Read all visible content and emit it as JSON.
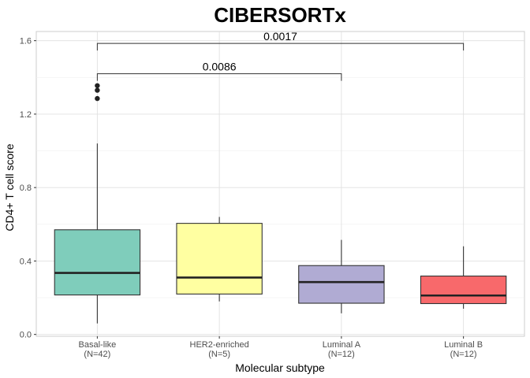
{
  "chart_data": {
    "type": "box",
    "title": "CIBERSORTx",
    "xlabel": "Molecular subtype",
    "ylabel": "CD4+ T cell score",
    "ylim": [
      -0.01,
      1.65
    ],
    "yticks": [
      "0.0",
      "0.4",
      "0.8",
      "1.2",
      "1.6"
    ],
    "grid": true,
    "categories": [
      {
        "name": "Basal-like",
        "n": "(N=42)",
        "color": "#7fcdbb",
        "min": 0.06,
        "q1": 0.215,
        "median": 0.335,
        "q3": 0.57,
        "max": 1.04,
        "outliers": [
          1.285,
          1.33,
          1.355
        ]
      },
      {
        "name": "HER2-enriched",
        "n": "(N=5)",
        "color": "#ffffa1",
        "min": 0.18,
        "q1": 0.22,
        "median": 0.31,
        "q3": 0.605,
        "max": 0.64,
        "outliers": []
      },
      {
        "name": "Luminal A",
        "n": "(N=12)",
        "color": "#b0abd3",
        "min": 0.115,
        "q1": 0.17,
        "median": 0.285,
        "q3": 0.375,
        "max": 0.515,
        "outliers": []
      },
      {
        "name": "Luminal B",
        "n": "(N=12)",
        "color": "#f8696b",
        "min": 0.14,
        "q1": 0.168,
        "median": 0.212,
        "q3": 0.318,
        "max": 0.48,
        "outliers": []
      }
    ],
    "comparisons": [
      {
        "from": 0,
        "to": 2,
        "label": "0.0086",
        "y": 1.42
      },
      {
        "from": 0,
        "to": 3,
        "label": "0.0017",
        "y": 1.585
      }
    ]
  }
}
